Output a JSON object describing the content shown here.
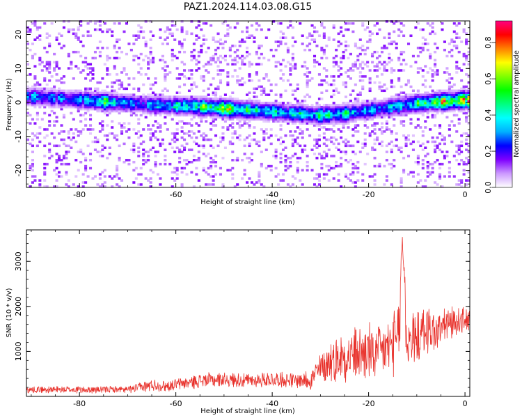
{
  "chart_data": [
    {
      "type": "heatmap",
      "title": "PAZ1.2024.114.03.08.G15",
      "xlabel": "Height of straight line (km)",
      "ylabel": "Frequency (Hz)",
      "xlim": [
        -91,
        1
      ],
      "ylim": [
        -25,
        24
      ],
      "x_ticks": [
        -80,
        -60,
        -40,
        -20,
        0
      ],
      "y_ticks": [
        -20,
        -10,
        0,
        10,
        20
      ],
      "colorbar": {
        "label": "Normalized spectral amplitude",
        "range": [
          0,
          0.92
        ],
        "ticks": [
          0.0,
          0.2,
          0.4,
          0.6,
          0.8
        ],
        "colors": [
          "#ffffff",
          "#cc99ff",
          "#7f00ff",
          "#0000ff",
          "#00b0ff",
          "#00ffff",
          "#00ff80",
          "#00ff00",
          "#80ff00",
          "#ffff00",
          "#ff8000",
          "#ff0000",
          "#ff0080"
        ]
      },
      "ridge": {
        "description_points_x": [
          -90,
          -85,
          -80,
          -75,
          -70,
          -65,
          -60,
          -55,
          -50,
          -45,
          -40,
          -35,
          -30,
          -25,
          -20,
          -15,
          -10,
          -5,
          0
        ],
        "center_frequency": [
          1.5,
          1.0,
          0.5,
          0.0,
          -0.5,
          -1.0,
          -1.2,
          -1.5,
          -2.0,
          -2.5,
          -3.0,
          -3.5,
          -4.0,
          -3.5,
          -2.5,
          -1.5,
          -0.5,
          0.0,
          0.5
        ],
        "peak_amplitude": [
          0.4,
          0.35,
          0.4,
          0.62,
          0.35,
          0.4,
          0.52,
          0.6,
          0.8,
          0.55,
          0.5,
          0.5,
          0.55,
          0.5,
          0.4,
          0.45,
          0.55,
          0.8,
          0.9
        ]
      }
    },
    {
      "type": "line",
      "xlabel": "Height of straight line (km)",
      "ylabel": "SNR (10 * v/v)",
      "xlim": [
        -91,
        1
      ],
      "ylim": [
        0,
        3700
      ],
      "x_ticks": [
        -80,
        -60,
        -40,
        -20,
        0
      ],
      "y_ticks": [
        1000,
        2000,
        3000
      ],
      "color": "#e8302a",
      "envelope": {
        "x": [
          -90,
          -80,
          -70,
          -65,
          -62,
          -55,
          -50,
          -45,
          -40,
          -35,
          -32,
          -30,
          -28,
          -25,
          -22,
          -20,
          -18,
          -16,
          -14,
          -13,
          -12,
          -10,
          -8,
          -6,
          -4,
          -2,
          0
        ],
        "mean": [
          150,
          150,
          150,
          250,
          230,
          350,
          380,
          350,
          380,
          350,
          380,
          600,
          800,
          900,
          950,
          1000,
          950,
          1100,
          1200,
          2500,
          1200,
          1300,
          1500,
          1400,
          1600,
          1650,
          1700
        ],
        "amp": [
          80,
          90,
          80,
          150,
          130,
          170,
          180,
          170,
          190,
          180,
          250,
          400,
          500,
          600,
          650,
          700,
          650,
          700,
          800,
          1200,
          700,
          600,
          600,
          500,
          450,
          350,
          300
        ]
      }
    }
  ]
}
